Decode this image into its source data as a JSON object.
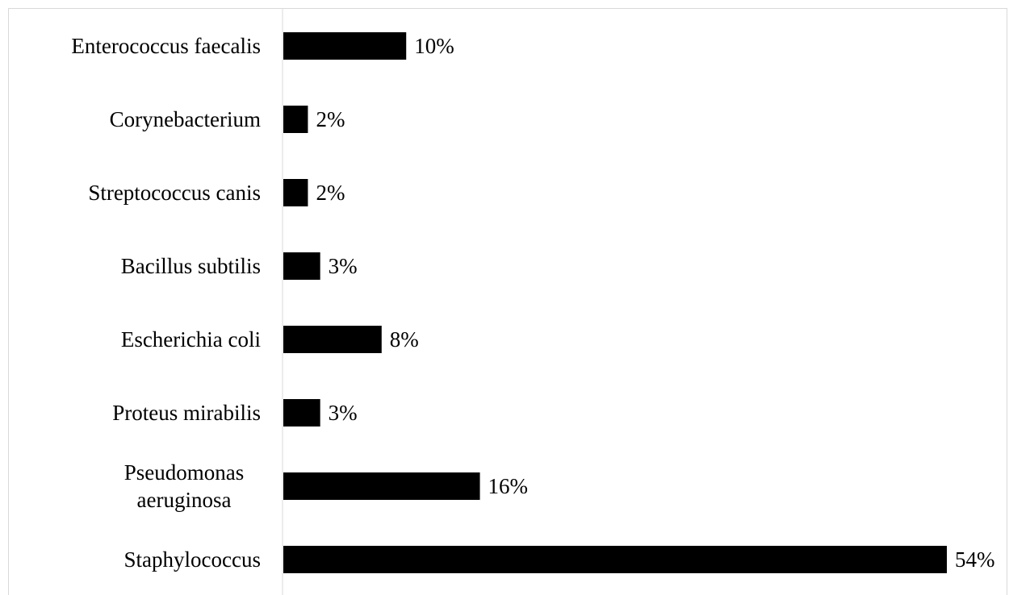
{
  "chart_data": {
    "type": "bar",
    "orientation": "horizontal",
    "categories": [
      "Enterococcus faecalis",
      "Corynebacterium",
      "Streptococcus canis",
      "Bacillus subtilis",
      "Escherichia coli",
      "Proteus mirabilis",
      "Pseudomonas aeruginosa",
      "Staphylococcus"
    ],
    "category_label_lines": [
      [
        "Enterococcus faecalis"
      ],
      [
        "Corynebacterium"
      ],
      [
        "Streptococcus canis"
      ],
      [
        "Bacillus subtilis"
      ],
      [
        "Escherichia coli"
      ],
      [
        "Proteus mirabilis"
      ],
      [
        "Pseudomonas",
        "aeruginosa"
      ],
      [
        "Staphylococcus"
      ]
    ],
    "values": [
      10,
      2,
      2,
      3,
      8,
      3,
      16,
      54
    ],
    "data_labels": [
      "10%",
      "2%",
      "2%",
      "3%",
      "8%",
      "3%",
      "16%",
      "54%"
    ],
    "unit": "%",
    "xlim": [
      0,
      54
    ],
    "bar_color": "#000000",
    "axis_color": "#d9d9d9",
    "grid": false,
    "legend": "none"
  }
}
